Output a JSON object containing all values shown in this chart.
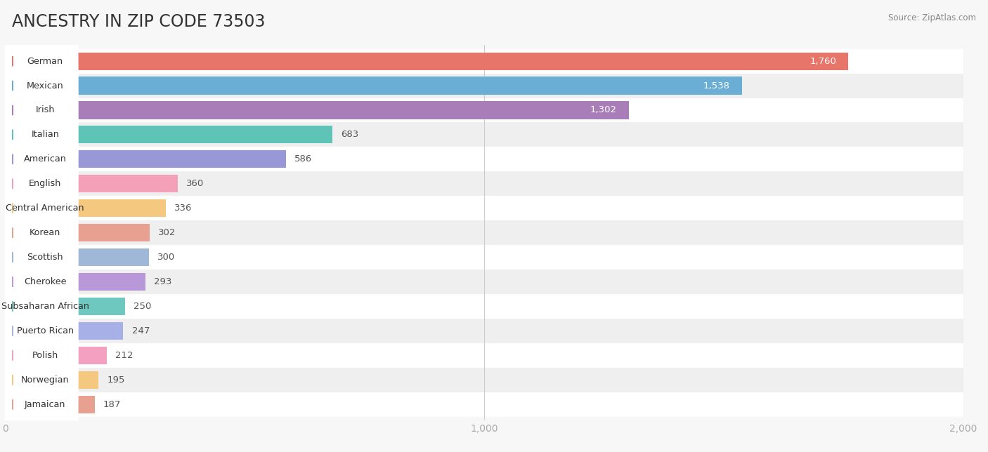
{
  "title": "ANCESTRY IN ZIP CODE 73503",
  "source": "Source: ZipAtlas.com",
  "categories": [
    "German",
    "Mexican",
    "Irish",
    "Italian",
    "American",
    "English",
    "Central American",
    "Korean",
    "Scottish",
    "Cherokee",
    "Subsaharan African",
    "Puerto Rican",
    "Polish",
    "Norwegian",
    "Jamaican"
  ],
  "values": [
    1760,
    1538,
    1302,
    683,
    586,
    360,
    336,
    302,
    300,
    293,
    250,
    247,
    212,
    195,
    187
  ],
  "bar_colors": [
    "#E8756A",
    "#6AAED6",
    "#A87DB8",
    "#5FC4B8",
    "#9898D8",
    "#F4A0B8",
    "#F5C880",
    "#E8A090",
    "#A0B8D8",
    "#B898D8",
    "#6EC8C0",
    "#A8B0E8",
    "#F4A0C0",
    "#F5C880",
    "#E8A090"
  ],
  "background_color": "#f7f7f7",
  "row_bg_even": "#ffffff",
  "row_bg_odd": "#efefef",
  "xlim": [
    0,
    2000
  ],
  "xticks": [
    0,
    1000,
    2000
  ],
  "xticklabels": [
    "0",
    "1,000",
    "2,000"
  ],
  "title_fontsize": 17,
  "bar_height": 0.72,
  "value_label_fontsize": 9.5,
  "axis_label_fontsize": 10
}
